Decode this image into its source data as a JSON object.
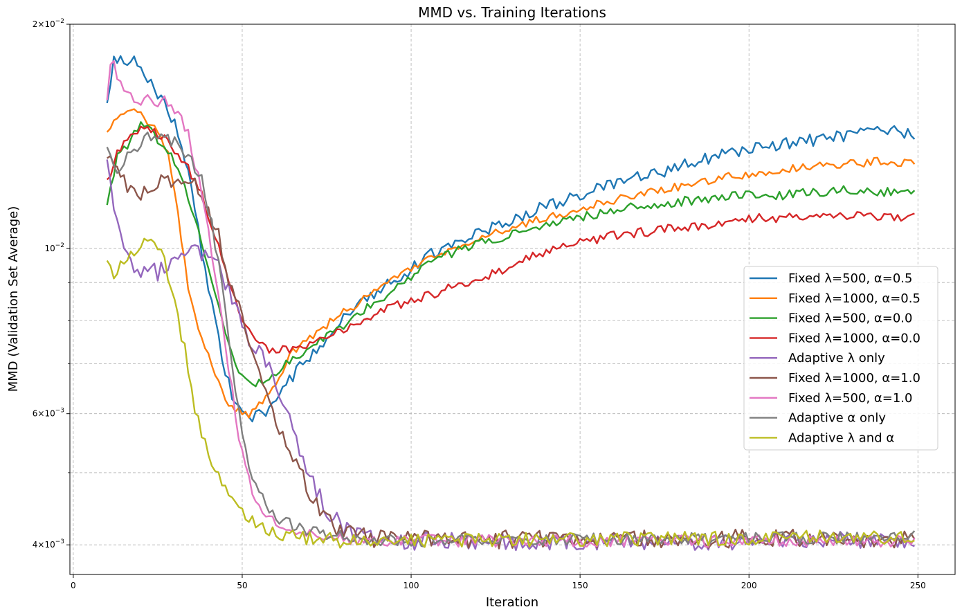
{
  "chart_data": {
    "type": "line",
    "title": "MMD vs. Training Iterations",
    "xlabel": "Iteration",
    "ylabel": "MMD (Validation Set Average)",
    "yscale": "log",
    "xlim": [
      -1,
      261
    ],
    "ylim": [
      0.00365,
      0.02
    ],
    "grid": true,
    "legend_position": "center-right",
    "x_ticks": [
      {
        "value": 0,
        "label": "0"
      },
      {
        "value": 50,
        "label": "50"
      },
      {
        "value": 100,
        "label": "100"
      },
      {
        "value": 150,
        "label": "150"
      },
      {
        "value": 200,
        "label": "200"
      },
      {
        "value": 250,
        "label": "250"
      }
    ],
    "y_major_ticks": [
      {
        "value": 0.004,
        "mantissa": "4",
        "base": "10",
        "exp": "−3"
      },
      {
        "value": 0.006,
        "mantissa": "6",
        "base": "10",
        "exp": "−3"
      },
      {
        "value": 0.01,
        "mantissa": "",
        "base": "10",
        "exp": "−2"
      },
      {
        "value": 0.02,
        "mantissa": "2",
        "base": "10",
        "exp": "−2"
      }
    ],
    "y_minor_ticks": [
      0.005,
      0.007,
      0.008,
      0.009
    ],
    "series": [
      {
        "name": "Fixed λ=500, α=0.5",
        "color": "#1f77b4",
        "noise": 0.012,
        "keys": [
          [
            10,
            0.0155
          ],
          [
            12,
            0.018
          ],
          [
            15,
            0.0178
          ],
          [
            18,
            0.0178
          ],
          [
            22,
            0.0168
          ],
          [
            26,
            0.016
          ],
          [
            30,
            0.0147
          ],
          [
            33,
            0.0133
          ],
          [
            36,
            0.0112
          ],
          [
            40,
            0.0088
          ],
          [
            44,
            0.0072
          ],
          [
            47,
            0.0063
          ],
          [
            52,
            0.0059
          ],
          [
            57,
            0.006
          ],
          [
            62,
            0.0065
          ],
          [
            68,
            0.007
          ],
          [
            75,
            0.0076
          ],
          [
            85,
            0.0085
          ],
          [
            100,
            0.0094
          ],
          [
            110,
            0.0101
          ],
          [
            125,
            0.0107
          ],
          [
            140,
            0.0114
          ],
          [
            150,
            0.0118
          ],
          [
            160,
            0.0122
          ],
          [
            175,
            0.0127
          ],
          [
            190,
            0.0133
          ],
          [
            200,
            0.0136
          ],
          [
            210,
            0.0138
          ],
          [
            220,
            0.014
          ],
          [
            230,
            0.0142
          ],
          [
            240,
            0.0144
          ],
          [
            249,
            0.0142
          ]
        ]
      },
      {
        "name": "Fixed λ=1000, α=0.5",
        "color": "#ff7f0e",
        "noise": 0.008,
        "keys": [
          [
            10,
            0.0142
          ],
          [
            13,
            0.015
          ],
          [
            18,
            0.0154
          ],
          [
            22,
            0.0148
          ],
          [
            25,
            0.0145
          ],
          [
            28,
            0.0134
          ],
          [
            31,
            0.0112
          ],
          [
            34,
            0.0088
          ],
          [
            37,
            0.0078
          ],
          [
            40,
            0.0072
          ],
          [
            44,
            0.0064
          ],
          [
            47,
            0.0061
          ],
          [
            52,
            0.006
          ],
          [
            56,
            0.0062
          ],
          [
            60,
            0.0066
          ],
          [
            64,
            0.0072
          ],
          [
            70,
            0.0076
          ],
          [
            80,
            0.0082
          ],
          [
            90,
            0.0088
          ],
          [
            100,
            0.0094
          ],
          [
            110,
            0.0099
          ],
          [
            125,
            0.0105
          ],
          [
            140,
            0.011
          ],
          [
            150,
            0.0113
          ],
          [
            160,
            0.0116
          ],
          [
            175,
            0.012
          ],
          [
            190,
            0.0124
          ],
          [
            200,
            0.0126
          ],
          [
            210,
            0.0128
          ],
          [
            220,
            0.0129
          ],
          [
            230,
            0.013
          ],
          [
            240,
            0.0131
          ],
          [
            249,
            0.013
          ]
        ]
      },
      {
        "name": "Fixed λ=500, α=0.0",
        "color": "#2ca02c",
        "noise": 0.009,
        "keys": [
          [
            10,
            0.0113
          ],
          [
            13,
            0.0134
          ],
          [
            16,
            0.0138
          ],
          [
            20,
            0.0146
          ],
          [
            23,
            0.0144
          ],
          [
            28,
            0.0135
          ],
          [
            31,
            0.0128
          ],
          [
            34,
            0.0117
          ],
          [
            37,
            0.0105
          ],
          [
            40,
            0.0093
          ],
          [
            45,
            0.0077
          ],
          [
            50,
            0.0067
          ],
          [
            55,
            0.0066
          ],
          [
            60,
            0.0068
          ],
          [
            65,
            0.0071
          ],
          [
            70,
            0.0074
          ],
          [
            80,
            0.0079
          ],
          [
            90,
            0.0085
          ],
          [
            100,
            0.0092
          ],
          [
            110,
            0.0098
          ],
          [
            125,
            0.0103
          ],
          [
            140,
            0.0107
          ],
          [
            150,
            0.011
          ],
          [
            160,
            0.0113
          ],
          [
            175,
            0.0115
          ],
          [
            190,
            0.0117
          ],
          [
            200,
            0.0118
          ],
          [
            210,
            0.0118
          ],
          [
            220,
            0.0119
          ],
          [
            230,
            0.012
          ],
          [
            240,
            0.0119
          ],
          [
            249,
            0.0119
          ]
        ]
      },
      {
        "name": "Fixed λ=1000, α=0.0",
        "color": "#d62728",
        "noise": 0.009,
        "keys": [
          [
            10,
            0.0122
          ],
          [
            13,
            0.0135
          ],
          [
            17,
            0.0142
          ],
          [
            22,
            0.0145
          ],
          [
            26,
            0.0142
          ],
          [
            30,
            0.0136
          ],
          [
            34,
            0.0128
          ],
          [
            38,
            0.0118
          ],
          [
            42,
            0.0104
          ],
          [
            46,
            0.009
          ],
          [
            50,
            0.008
          ],
          [
            55,
            0.0074
          ],
          [
            60,
            0.0073
          ],
          [
            70,
            0.0074
          ],
          [
            80,
            0.0078
          ],
          [
            90,
            0.0082
          ],
          [
            100,
            0.0085
          ],
          [
            110,
            0.0088
          ],
          [
            120,
            0.0091
          ],
          [
            130,
            0.0095
          ],
          [
            140,
            0.0099
          ],
          [
            150,
            0.0102
          ],
          [
            160,
            0.0104
          ],
          [
            175,
            0.0106
          ],
          [
            190,
            0.0108
          ],
          [
            200,
            0.011
          ],
          [
            210,
            0.011
          ],
          [
            220,
            0.0111
          ],
          [
            230,
            0.0111
          ],
          [
            240,
            0.011
          ],
          [
            249,
            0.011
          ]
        ]
      },
      {
        "name": "Adaptive λ only",
        "color": "#9467bd",
        "noise": 0.018,
        "keys": [
          [
            10,
            0.0135
          ],
          [
            12,
            0.0113
          ],
          [
            15,
            0.0098
          ],
          [
            20,
            0.0094
          ],
          [
            25,
            0.0093
          ],
          [
            30,
            0.0096
          ],
          [
            35,
            0.0099
          ],
          [
            40,
            0.0098
          ],
          [
            44,
            0.0093
          ],
          [
            48,
            0.0084
          ],
          [
            52,
            0.0076
          ],
          [
            56,
            0.0072
          ],
          [
            60,
            0.0066
          ],
          [
            64,
            0.0059
          ],
          [
            68,
            0.0052
          ],
          [
            72,
            0.0047
          ],
          [
            76,
            0.0044
          ],
          [
            80,
            0.0042
          ],
          [
            85,
            0.0041
          ],
          [
            95,
            0.00405
          ],
          [
            249,
            0.00405
          ]
        ]
      },
      {
        "name": "Fixed λ=1000, α=1.0",
        "color": "#8c564b",
        "noise": 0.018,
        "keys": [
          [
            10,
            0.0135
          ],
          [
            12,
            0.0128
          ],
          [
            15,
            0.0122
          ],
          [
            20,
            0.0119
          ],
          [
            25,
            0.0124
          ],
          [
            30,
            0.0123
          ],
          [
            34,
            0.0124
          ],
          [
            38,
            0.0118
          ],
          [
            42,
            0.0108
          ],
          [
            46,
            0.0092
          ],
          [
            50,
            0.008
          ],
          [
            54,
            0.007
          ],
          [
            58,
            0.0062
          ],
          [
            62,
            0.0056
          ],
          [
            66,
            0.0051
          ],
          [
            70,
            0.0047
          ],
          [
            74,
            0.0044
          ],
          [
            78,
            0.0042
          ],
          [
            85,
            0.0041
          ],
          [
            95,
            0.00407
          ],
          [
            249,
            0.00408
          ]
        ]
      },
      {
        "name": "Fixed λ=500, α=1.0",
        "color": "#e377c2",
        "noise": 0.012,
        "keys": [
          [
            10,
            0.016
          ],
          [
            11,
            0.018
          ],
          [
            13,
            0.0172
          ],
          [
            16,
            0.0162
          ],
          [
            20,
            0.0158
          ],
          [
            24,
            0.0158
          ],
          [
            28,
            0.0157
          ],
          [
            31,
            0.0152
          ],
          [
            34,
            0.0142
          ],
          [
            37,
            0.0125
          ],
          [
            40,
            0.0105
          ],
          [
            43,
            0.0085
          ],
          [
            46,
            0.0069
          ],
          [
            49,
            0.0056
          ],
          [
            52,
            0.0049
          ],
          [
            55,
            0.0045
          ],
          [
            60,
            0.0043
          ],
          [
            66,
            0.0042
          ],
          [
            75,
            0.0041
          ],
          [
            90,
            0.00405
          ],
          [
            249,
            0.00405
          ]
        ]
      },
      {
        "name": "Adaptive α only",
        "color": "#7f7f7f",
        "noise": 0.012,
        "keys": [
          [
            10,
            0.0138
          ],
          [
            13,
            0.0128
          ],
          [
            17,
            0.0134
          ],
          [
            22,
            0.0142
          ],
          [
            26,
            0.0143
          ],
          [
            30,
            0.0139
          ],
          [
            34,
            0.0133
          ],
          [
            38,
            0.0124
          ],
          [
            41,
            0.0108
          ],
          [
            44,
            0.0089
          ],
          [
            47,
            0.007
          ],
          [
            50,
            0.0057
          ],
          [
            53,
            0.0049
          ],
          [
            57,
            0.0045
          ],
          [
            62,
            0.0043
          ],
          [
            68,
            0.0042
          ],
          [
            80,
            0.0041
          ],
          [
            95,
            0.00405
          ],
          [
            249,
            0.0041
          ]
        ]
      },
      {
        "name": "Adaptive λ and α",
        "color": "#bcbd22",
        "noise": 0.014,
        "keys": [
          [
            10,
            0.0097
          ],
          [
            12,
            0.0092
          ],
          [
            15,
            0.0096
          ],
          [
            19,
            0.0101
          ],
          [
            23,
            0.0103
          ],
          [
            26,
            0.0101
          ],
          [
            28,
            0.0092
          ],
          [
            30,
            0.0085
          ],
          [
            33,
            0.0073
          ],
          [
            36,
            0.0061
          ],
          [
            39,
            0.0055
          ],
          [
            42,
            0.005
          ],
          [
            45,
            0.0047
          ],
          [
            48,
            0.0045
          ],
          [
            52,
            0.0043
          ],
          [
            58,
            0.0042
          ],
          [
            65,
            0.0041
          ],
          [
            80,
            0.00405
          ],
          [
            249,
            0.0041
          ]
        ]
      }
    ]
  }
}
